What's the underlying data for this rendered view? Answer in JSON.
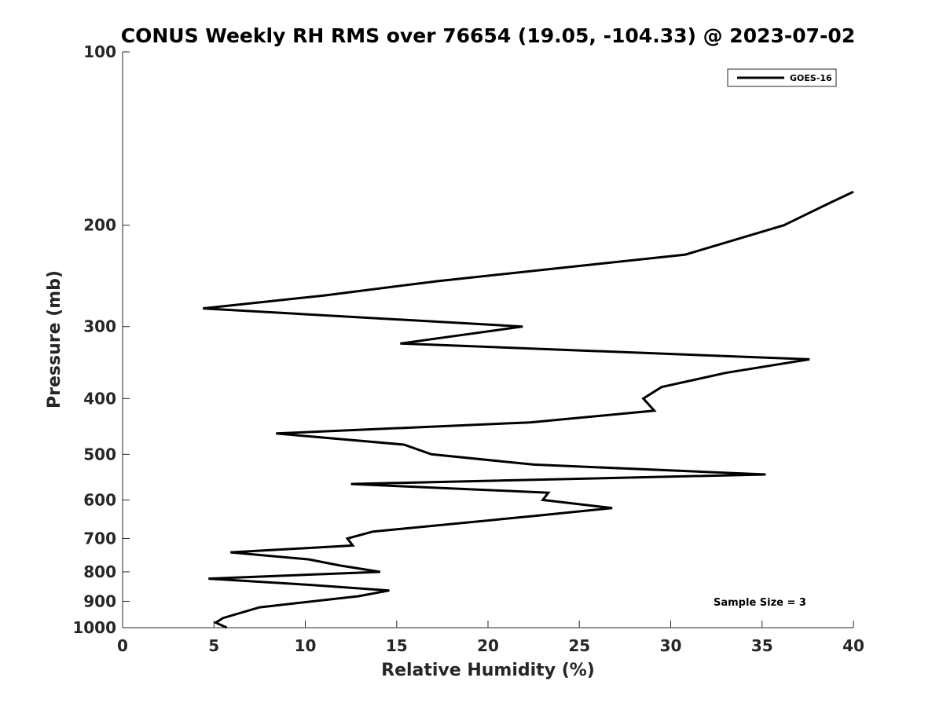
{
  "chart_data": {
    "type": "line",
    "title": "CONUS Weekly RH RMS over 76654 (19.05, -104.33) @ 2023-07-02",
    "xlabel": "Relative Humidity (%)",
    "ylabel": "Pressure (mb)",
    "xlim": [
      0,
      40
    ],
    "ylim": [
      1000,
      100
    ],
    "yscale": "log",
    "grid": false,
    "x_ticks": [
      0,
      5,
      10,
      15,
      20,
      25,
      30,
      35,
      40
    ],
    "y_ticks": [
      100,
      200,
      300,
      400,
      500,
      600,
      700,
      800,
      900,
      1000
    ],
    "legend_position": "top-right",
    "annotation": "Sample Size = 3",
    "series": [
      {
        "name": "GOES-16",
        "color": "#000000",
        "points": [
          [
            40.0,
            175
          ],
          [
            38.7,
            183
          ],
          [
            36.2,
            200
          ],
          [
            30.8,
            225
          ],
          [
            17.3,
            250
          ],
          [
            11.0,
            265
          ],
          [
            4.4,
            279
          ],
          [
            21.9,
            300
          ],
          [
            15.2,
            321
          ],
          [
            37.6,
            342
          ],
          [
            33.0,
            361
          ],
          [
            29.5,
            382
          ],
          [
            28.5,
            400
          ],
          [
            29.1,
            420
          ],
          [
            22.3,
            440
          ],
          [
            8.4,
            460
          ],
          [
            15.4,
            481
          ],
          [
            16.9,
            500
          ],
          [
            22.5,
            521
          ],
          [
            35.2,
            542
          ],
          [
            12.5,
            563
          ],
          [
            23.3,
            583
          ],
          [
            23.0,
            600
          ],
          [
            26.8,
            620
          ],
          [
            22.5,
            640
          ],
          [
            13.7,
            681
          ],
          [
            12.3,
            700
          ],
          [
            12.6,
            720
          ],
          [
            5.9,
            740
          ],
          [
            10.2,
            761
          ],
          [
            11.9,
            780
          ],
          [
            14.1,
            800
          ],
          [
            4.7,
            822
          ],
          [
            10.3,
            843
          ],
          [
            14.6,
            862
          ],
          [
            12.9,
            882
          ],
          [
            7.5,
            922
          ],
          [
            5.5,
            962
          ],
          [
            5.1,
            980
          ],
          [
            5.7,
            1000
          ]
        ]
      }
    ]
  }
}
